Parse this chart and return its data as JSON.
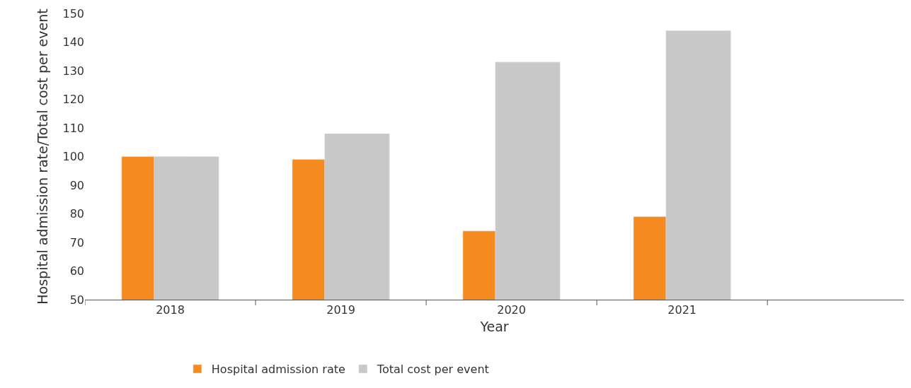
{
  "chart_data": {
    "type": "bar",
    "xlabel": "Year",
    "ylabel": "Hospital admission rate/Total cost per event",
    "categories": [
      "2018",
      "2019",
      "2020",
      "2021"
    ],
    "series": [
      {
        "name": "Hospital admission rate",
        "color": "#f58a1f",
        "values": [
          100,
          99,
          74,
          79
        ]
      },
      {
        "name": "Total cost per event",
        "color": "#c8c8c8",
        "values": [
          100,
          108,
          133,
          144
        ]
      }
    ],
    "ylim": [
      50,
      150
    ],
    "yticks": [
      50,
      60,
      70,
      80,
      90,
      100,
      110,
      120,
      130,
      140,
      150
    ],
    "legend": "bottom"
  }
}
